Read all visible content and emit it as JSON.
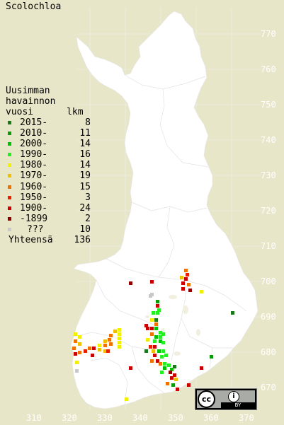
{
  "title": "Scolochloa",
  "legend": {
    "header": [
      "Uusimman",
      "havainnon",
      "vuosi      lkm"
    ],
    "items": [
      {
        "label": "2015-",
        "count": "8",
        "color": "#1a7a1a"
      },
      {
        "label": "2010-",
        "count": "11",
        "color": "#0a9a0a"
      },
      {
        "label": "2000-",
        "count": "14",
        "color": "#00c000"
      },
      {
        "label": "1990-",
        "count": "16",
        "color": "#22ee22"
      },
      {
        "label": "1980-",
        "count": "14",
        "color": "#f0f000"
      },
      {
        "label": "1970-",
        "count": "19",
        "color": "#f0c000"
      },
      {
        "label": "1960-",
        "count": "15",
        "color": "#f07000"
      },
      {
        "label": "1950-",
        "count": "3",
        "color": "#e82000"
      },
      {
        "label": "1900-",
        "count": "24",
        "color": "#cc0000"
      },
      {
        "label": "-1899",
        "count": "2",
        "color": "#900000"
      },
      {
        "label": "???",
        "count": "10",
        "color": "#c8c8c8"
      }
    ],
    "total_label": "Yhteensä",
    "total_count": "136"
  },
  "axes": {
    "y_ticks": [
      "770",
      "760",
      "750",
      "740",
      "730",
      "720",
      "710",
      "700",
      "690",
      "680",
      "670"
    ],
    "x_ticks": [
      "310",
      "320",
      "330",
      "340",
      "350",
      "360",
      "370"
    ]
  },
  "license_badge": {
    "icon_name": "creative-commons-by-icon",
    "text": "BY"
  }
}
